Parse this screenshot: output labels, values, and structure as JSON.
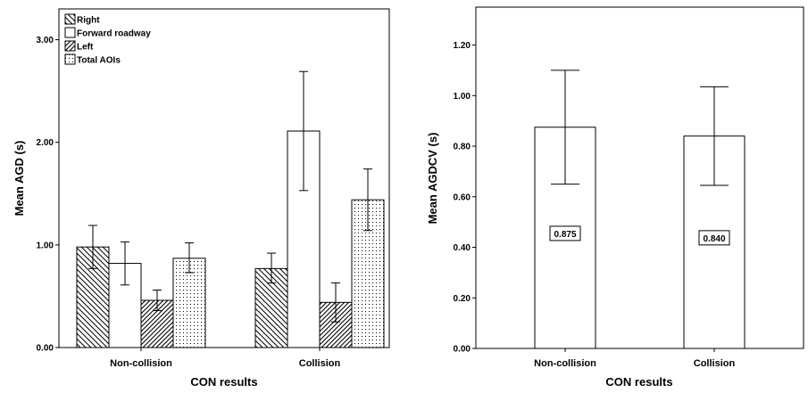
{
  "chart_data": [
    {
      "type": "bar",
      "categories": [
        "Non-collision",
        "Collision"
      ],
      "xlabel": "CON results",
      "ylabel": "Mean AGD (s)",
      "ylim": [
        0,
        3.3
      ],
      "yticks": [
        "0.00",
        "1.00",
        "2.00",
        "3.00"
      ],
      "legend_position": "top-left",
      "series": [
        {
          "name": "Right",
          "pattern": "diagonal-back",
          "values": [
            0.98,
            0.77
          ],
          "err_low": [
            0.77,
            0.63
          ],
          "err_high": [
            1.19,
            0.92
          ]
        },
        {
          "name": "Forward roadway",
          "pattern": "none",
          "values": [
            0.82,
            2.11
          ],
          "err_low": [
            0.61,
            1.53
          ],
          "err_high": [
            1.03,
            2.69
          ]
        },
        {
          "name": "Left",
          "pattern": "diagonal-forward",
          "values": [
            0.46,
            0.44
          ],
          "err_low": [
            0.36,
            0.25
          ],
          "err_high": [
            0.56,
            0.63
          ]
        },
        {
          "name": "Total AOIs",
          "pattern": "dots",
          "values": [
            0.87,
            1.44
          ],
          "err_low": [
            0.73,
            1.14
          ],
          "err_high": [
            1.02,
            1.74
          ]
        }
      ],
      "grid": false
    },
    {
      "type": "bar",
      "categories": [
        "Non-collision",
        "Collision"
      ],
      "xlabel": "CON results",
      "ylabel": "Mean AGDCV (s)",
      "ylim": [
        0,
        1.35
      ],
      "yticks": [
        "0.00",
        "0.20",
        "0.40",
        "0.60",
        "0.80",
        "1.00",
        "1.20"
      ],
      "series": [
        {
          "values": [
            0.875,
            0.84
          ],
          "err_low": [
            0.65,
            0.645
          ],
          "err_high": [
            1.1,
            1.035
          ]
        }
      ],
      "data_labels": [
        "0.875",
        "0.840"
      ],
      "grid": false
    }
  ]
}
